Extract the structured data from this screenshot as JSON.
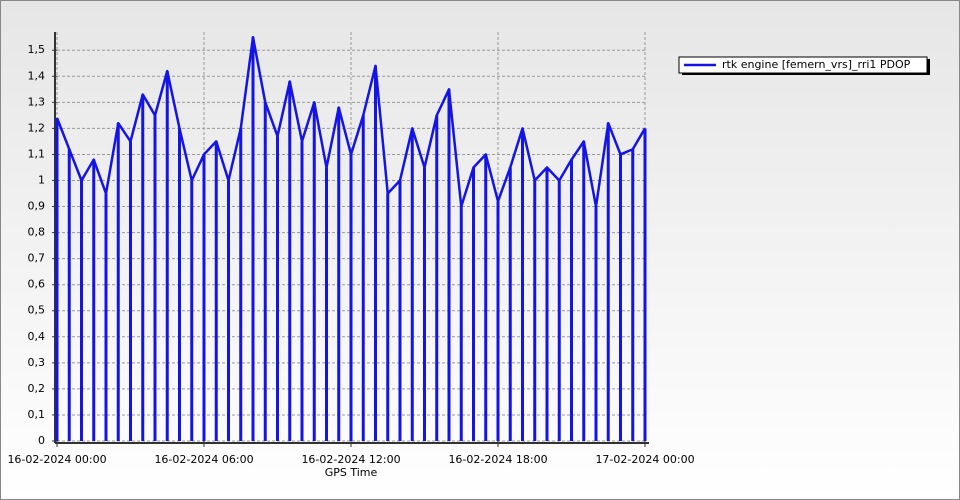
{
  "chart_data": {
    "type": "line",
    "x_label": "GPS Time",
    "x": [
      "2024-02-16T00:00",
      "2024-02-16T00:30",
      "2024-02-16T01:00",
      "2024-02-16T01:30",
      "2024-02-16T02:00",
      "2024-02-16T02:30",
      "2024-02-16T03:00",
      "2024-02-16T03:30",
      "2024-02-16T04:00",
      "2024-02-16T04:30",
      "2024-02-16T05:00",
      "2024-02-16T05:30",
      "2024-02-16T06:00",
      "2024-02-16T06:30",
      "2024-02-16T07:00",
      "2024-02-16T07:30",
      "2024-02-16T08:00",
      "2024-02-16T08:30",
      "2024-02-16T09:00",
      "2024-02-16T09:30",
      "2024-02-16T10:00",
      "2024-02-16T10:30",
      "2024-02-16T11:00",
      "2024-02-16T11:30",
      "2024-02-16T12:00",
      "2024-02-16T12:30",
      "2024-02-16T13:00",
      "2024-02-16T13:30",
      "2024-02-16T14:00",
      "2024-02-16T14:30",
      "2024-02-16T15:00",
      "2024-02-16T15:30",
      "2024-02-16T16:00",
      "2024-02-16T16:30",
      "2024-02-16T17:00",
      "2024-02-16T17:30",
      "2024-02-16T18:00",
      "2024-02-16T18:30",
      "2024-02-16T19:00",
      "2024-02-16T19:30",
      "2024-02-16T20:00",
      "2024-02-16T20:30",
      "2024-02-16T21:00",
      "2024-02-16T21:30",
      "2024-02-16T22:00",
      "2024-02-16T22:30",
      "2024-02-16T23:00",
      "2024-02-16T23:30",
      "2024-02-17T00:00"
    ],
    "series": [
      {
        "name": "rtk engine [femern_vrs]_rri1 PDOP",
        "color": "#1414e6",
        "values": [
          1.24,
          1.12,
          1.0,
          1.08,
          0.95,
          1.22,
          1.15,
          1.33,
          1.25,
          1.42,
          1.2,
          1.0,
          1.1,
          1.15,
          1.0,
          1.2,
          1.55,
          1.3,
          1.17,
          1.38,
          1.15,
          1.3,
          1.05,
          1.28,
          1.1,
          1.25,
          1.44,
          0.95,
          1.0,
          1.2,
          1.05,
          1.25,
          1.35,
          0.9,
          1.05,
          1.1,
          0.92,
          1.05,
          1.2,
          1.0,
          1.05,
          1.0,
          1.08,
          1.15,
          0.9,
          1.22,
          1.1,
          1.12,
          1.2
        ]
      }
    ],
    "xlim": [
      "2024-02-16T00:00",
      "2024-02-17T00:00"
    ],
    "xticks": [
      {
        "value": "2024-02-16T00:00",
        "label": "16-02-2024 00:00"
      },
      {
        "value": "2024-02-16T06:00",
        "label": "16-02-2024 06:00"
      },
      {
        "value": "2024-02-16T12:00",
        "label": "16-02-2024 12:00"
      },
      {
        "value": "2024-02-16T18:00",
        "label": "16-02-2024 18:00"
      },
      {
        "value": "2024-02-17T00:00",
        "label": "17-02-2024 00:00"
      }
    ],
    "ylim": [
      0,
      1.57
    ],
    "yticks": [
      0,
      {
        "value": 0.1,
        "label": "0,1"
      },
      {
        "value": 0.2,
        "label": "0,2"
      },
      {
        "value": 0.3,
        "label": "0,3"
      },
      {
        "value": 0.4,
        "label": "0,4"
      },
      {
        "value": 0.5,
        "label": "0,5"
      },
      {
        "value": 0.6,
        "label": "0,6"
      },
      {
        "value": 0.7,
        "label": "0,7"
      },
      {
        "value": 0.8,
        "label": "0,8"
      },
      {
        "value": 0.9,
        "label": "0,9"
      },
      1,
      {
        "value": 1.1,
        "label": "1,1"
      },
      {
        "value": 1.2,
        "label": "1,2"
      },
      {
        "value": 1.3,
        "label": "1,3"
      },
      {
        "value": 1.4,
        "label": "1,4"
      },
      {
        "value": 1.5,
        "label": "1,5"
      }
    ],
    "grid": true,
    "legend": "top-right"
  }
}
